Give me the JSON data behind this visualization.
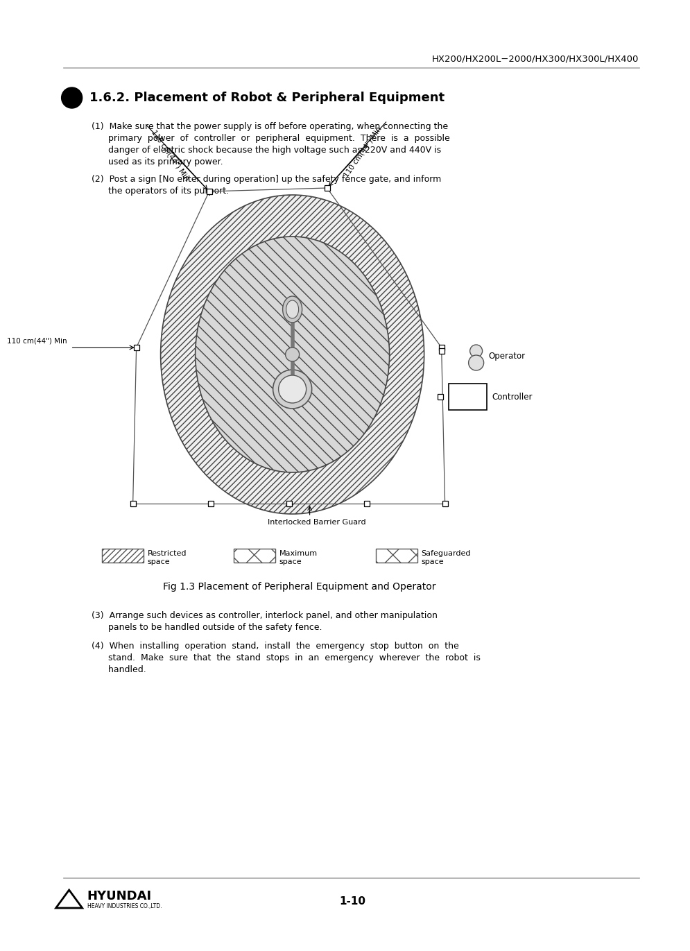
{
  "header_text": "HX200/HX200L−2000/HX300/HX300L/HX400",
  "section_title": "1.6.2. Placement of Robot & Peripheral Equipment",
  "para1_lines": [
    "(1)  Make sure that the power supply is off before operating, when connecting the",
    "      primary  power  of  controller  or  peripheral  equipment.  There  is  a  possible",
    "      danger of electric shock because the high voltage such as 220V and 440V is",
    "      used as its primary power."
  ],
  "para2_lines": [
    "(2)  Post a sign [No enter during operation] up the safety fence gate, and inform",
    "      the operators of its purport."
  ],
  "para3_lines": [
    "(3)  Arrange such devices as controller, interlock panel, and other manipulation",
    "      panels to be handled outside of the safety fence."
  ],
  "para4_lines": [
    "(4)  When  installing  operation  stand,  install  the  emergency  stop  button  on  the",
    "      stand.  Make  sure  that  the  stand  stops  in  an  emergency  wherever  the  robot  is",
    "      handled."
  ],
  "fig_caption": "Fig 1.3 Placement of Peripheral Equipment and Operator",
  "label_operator": "Operator",
  "label_controller": "Controller",
  "label_barrier": "Interlocked Barrier Guard",
  "label_110_left": "110 cm(44\") Min",
  "label_110_topleft": "110 cm(44\") Min",
  "label_110_topright": "110 cm(44\") Min",
  "page_number": "1-10",
  "bg_color": "#ffffff",
  "text_color": "#000000",
  "gray_line": "#999999"
}
